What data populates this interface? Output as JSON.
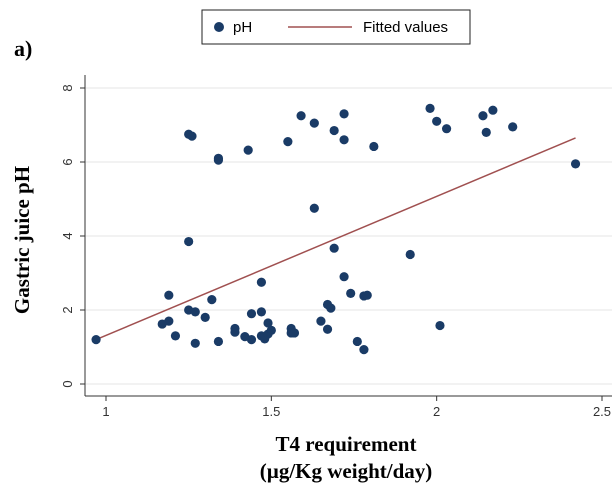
{
  "panel_label": "a)",
  "chart_data": {
    "type": "scatter",
    "xlabel_line1": "T4 requirement",
    "xlabel_line2": "(µg/Kg weight/day)",
    "ylabel": "Gastric juice pH",
    "xlim": [
      0.95,
      2.5
    ],
    "ylim": [
      0,
      8
    ],
    "x_ticks": [
      "1",
      "1.5",
      "2",
      "2.5"
    ],
    "y_ticks": [
      "0",
      "2",
      "4",
      "6",
      "8"
    ],
    "grid": true,
    "legend_position": "top",
    "legend": [
      {
        "label": "pH",
        "kind": "marker",
        "color": "#1a3b66"
      },
      {
        "label": "Fitted values",
        "kind": "line",
        "color": "#a05050"
      }
    ],
    "series": [
      {
        "name": "pH",
        "color": "#1a3b66",
        "points": [
          [
            0.97,
            1.2
          ],
          [
            1.17,
            1.62
          ],
          [
            1.19,
            1.7
          ],
          [
            1.19,
            2.4
          ],
          [
            1.21,
            1.3
          ],
          [
            1.25,
            6.75
          ],
          [
            1.26,
            6.7
          ],
          [
            1.25,
            3.85
          ],
          [
            1.25,
            2.0
          ],
          [
            1.27,
            1.95
          ],
          [
            1.27,
            1.1
          ],
          [
            1.3,
            1.8
          ],
          [
            1.32,
            2.28
          ],
          [
            1.34,
            6.1
          ],
          [
            1.34,
            6.05
          ],
          [
            1.34,
            1.15
          ],
          [
            1.39,
            1.4
          ],
          [
            1.39,
            1.5
          ],
          [
            1.42,
            1.28
          ],
          [
            1.43,
            6.32
          ],
          [
            1.44,
            1.9
          ],
          [
            1.44,
            1.2
          ],
          [
            1.47,
            2.75
          ],
          [
            1.47,
            1.95
          ],
          [
            1.47,
            1.3
          ],
          [
            1.48,
            1.22
          ],
          [
            1.49,
            1.65
          ],
          [
            1.49,
            1.35
          ],
          [
            1.5,
            1.45
          ],
          [
            1.55,
            6.55
          ],
          [
            1.56,
            1.5
          ],
          [
            1.56,
            1.38
          ],
          [
            1.57,
            1.38
          ],
          [
            1.59,
            7.25
          ],
          [
            1.63,
            7.05
          ],
          [
            1.63,
            4.75
          ],
          [
            1.65,
            1.7
          ],
          [
            1.67,
            2.15
          ],
          [
            1.67,
            1.48
          ],
          [
            1.68,
            2.05
          ],
          [
            1.69,
            6.85
          ],
          [
            1.69,
            3.67
          ],
          [
            1.72,
            7.3
          ],
          [
            1.72,
            6.6
          ],
          [
            1.72,
            2.9
          ],
          [
            1.74,
            2.45
          ],
          [
            1.76,
            1.15
          ],
          [
            1.78,
            0.93
          ],
          [
            1.78,
            2.38
          ],
          [
            1.79,
            2.4
          ],
          [
            1.81,
            6.42
          ],
          [
            1.92,
            3.5
          ],
          [
            1.98,
            7.45
          ],
          [
            2.0,
            7.1
          ],
          [
            2.01,
            1.58
          ],
          [
            2.03,
            6.9
          ],
          [
            2.14,
            7.25
          ],
          [
            2.15,
            6.8
          ],
          [
            2.17,
            7.4
          ],
          [
            2.23,
            6.95
          ],
          [
            2.42,
            5.95
          ]
        ]
      },
      {
        "name": "Fitted values",
        "color": "#a05050",
        "line": [
          [
            0.97,
            1.2
          ],
          [
            2.42,
            6.65
          ]
        ]
      }
    ]
  }
}
